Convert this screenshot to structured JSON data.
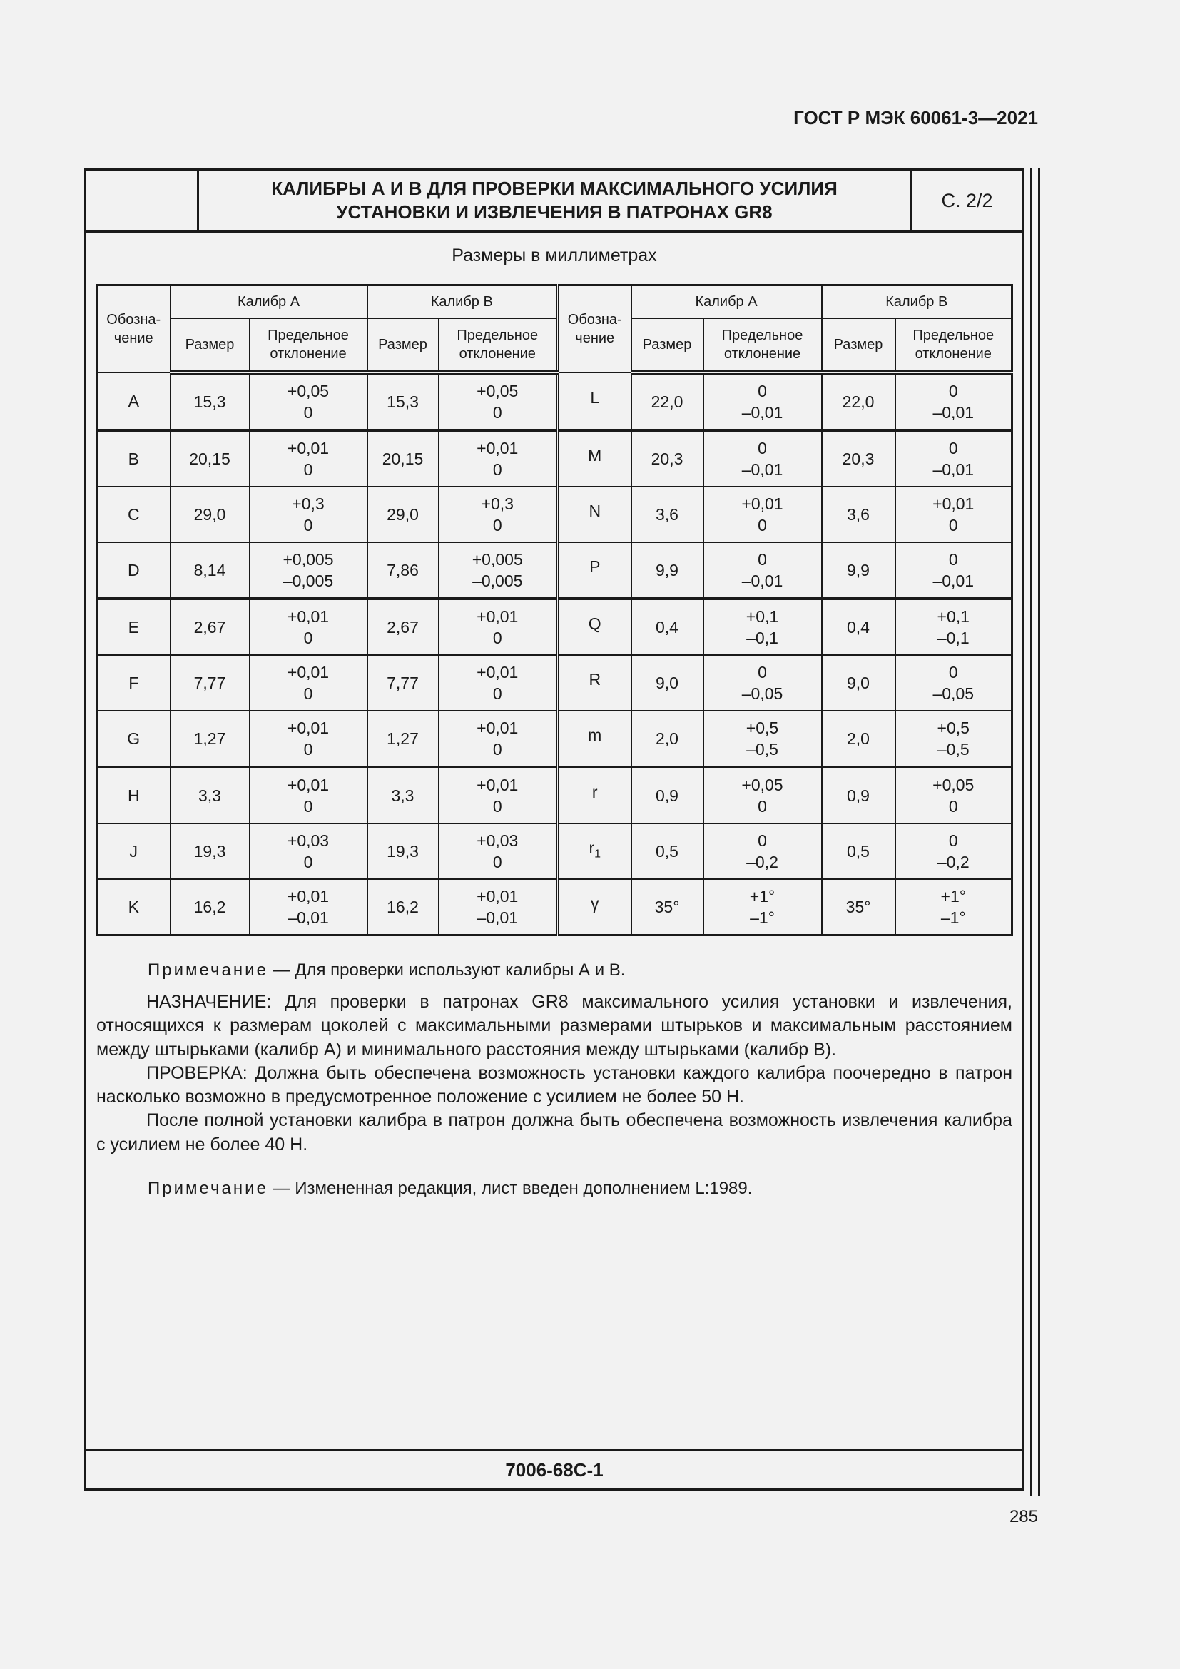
{
  "header": {
    "doc_code": "ГОСТ Р МЭК 60061-3—2021"
  },
  "title": {
    "line1": "КАЛИБРЫ А И В ДЛЯ ПРОВЕРКИ МАКСИМАЛЬНОГО УСИЛИЯ",
    "line2": "УСТАНОВКИ И ИЗВЛЕЧЕНИЯ В ПАТРОНАХ GR8",
    "page": "С. 2/2"
  },
  "units": "Размеры в миллиметрах",
  "table": {
    "headers": {
      "designation": "Обозна-чение",
      "gauge_a": "Калибр А",
      "gauge_b": "Калибр В",
      "size": "Размер",
      "deviation": "Предельное отклонение"
    },
    "rows": [
      {
        "l": [
          "A",
          "15,3",
          "+0,05",
          "0",
          "15,3",
          "+0,05",
          "0"
        ],
        "r": [
          "L",
          "",
          "22,0",
          "0",
          "–0,01",
          "22,0",
          "0",
          "–0,01"
        ]
      },
      {
        "l": [
          "B",
          "20,15",
          "+0,01",
          "0",
          "20,15",
          "+0,01",
          "0"
        ],
        "r": [
          "M",
          "",
          "20,3",
          "0",
          "–0,01",
          "20,3",
          "0",
          "–0,01"
        ]
      },
      {
        "l": [
          "C",
          "29,0",
          "+0,3",
          "0",
          "29,0",
          "+0,3",
          "0"
        ],
        "r": [
          "N",
          "",
          "3,6",
          "+0,01",
          "0",
          "3,6",
          "+0,01",
          "0"
        ]
      },
      {
        "l": [
          "D",
          "8,14",
          "+0,005",
          "–0,005",
          "7,86",
          "+0,005",
          "–0,005"
        ],
        "r": [
          "P",
          "",
          "9,9",
          "0",
          "–0,01",
          "9,9",
          "0",
          "–0,01"
        ]
      },
      {
        "l": [
          "E",
          "2,67",
          "+0,01",
          "0",
          "2,67",
          "+0,01",
          "0"
        ],
        "r": [
          "Q",
          "",
          "0,4",
          "+0,1",
          "–0,1",
          "0,4",
          "+0,1",
          "–0,1"
        ]
      },
      {
        "l": [
          "F",
          "7,77",
          "+0,01",
          "0",
          "7,77",
          "+0,01",
          "0"
        ],
        "r": [
          "R",
          "",
          "9,0",
          "0",
          "–0,05",
          "9,0",
          "0",
          "–0,05"
        ]
      },
      {
        "l": [
          "G",
          "1,27",
          "+0,01",
          "0",
          "1,27",
          "+0,01",
          "0"
        ],
        "r": [
          "m",
          "",
          "2,0",
          "+0,5",
          "–0,5",
          "2,0",
          "+0,5",
          "–0,5"
        ]
      },
      {
        "l": [
          "H",
          "3,3",
          "+0,01",
          "0",
          "3,3",
          "+0,01",
          "0"
        ],
        "r": [
          "r",
          "",
          "0,9",
          "+0,05",
          "0",
          "0,9",
          "+0,05",
          "0"
        ]
      },
      {
        "l": [
          "J",
          "19,3",
          "+0,03",
          "0",
          "19,3",
          "+0,03",
          "0"
        ],
        "r": [
          "r",
          "1",
          "0,5",
          "0",
          "–0,2",
          "0,5",
          "0",
          "–0,2"
        ]
      },
      {
        "l": [
          "K",
          "16,2",
          "+0,01",
          "–0,01",
          "16,2",
          "+0,01",
          "–0,01"
        ],
        "r": [
          "γ",
          "",
          "35°",
          "+1°",
          "–1°",
          "35°",
          "+1°",
          "–1°"
        ]
      }
    ]
  },
  "note1": {
    "label": "Примечание",
    "text": " — Для проверки используют калибры А и В."
  },
  "paragraphs": [
    "НАЗНАЧЕНИЕ: Для проверки в патронах GR8 максимального усилия установки и извлечения, относящихся к размерам цоколей с максимальными размерами штырьков и максимальным расстоянием между штырьками (калибр А) и минимального расстояния между штырьками (калибр В).",
    "ПРОВЕРКА: Должна быть обеспечена возможность установки каждого калибра поочередно в патрон насколько возможно в предусмотренное положение с усилием не более 50 Н.",
    "После полной установки калибра в патрон должна быть обеспечена возможность извлечения калибра с усилием не более 40 Н."
  ],
  "note2": {
    "label": "Примечание",
    "text": " — Измененная редакция, лист введен дополнением L:1989."
  },
  "sheet_code": "7006-68С-1",
  "page_number": "285"
}
